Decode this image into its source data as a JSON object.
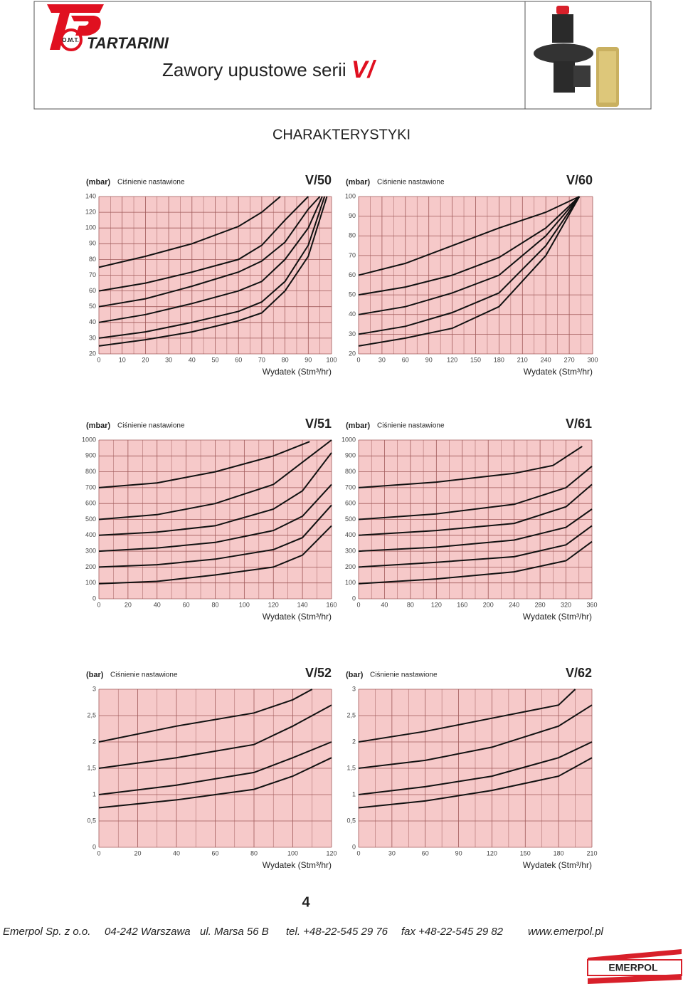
{
  "header": {
    "brand": "TARTARINI",
    "brand_mark": "O.M.T.",
    "title": "Zawory upustowe serii",
    "title_series": "V/"
  },
  "section_title": "CHARAKTERYSTYKI",
  "page_number": "4",
  "footer": {
    "items": [
      "Emerpol Sp. z o.o.",
      "04-242 Warszawa",
      "ul. Marsa 56 B",
      "tel. +48-22-545 29 76",
      "fax +48-22-545 29 82",
      "www.emerpol.pl"
    ],
    "logo": "EMERPOL"
  },
  "chart_data": [
    {
      "type": "line",
      "title": "V/50",
      "y_unit": "(mbar)",
      "y_label": "Ciśnienie nastawione",
      "x_label": "Wydatek (Stm³/hr)",
      "background": "#f6c9c9",
      "grid": true,
      "xlim": [
        0,
        100
      ],
      "xticks": [
        0,
        10,
        20,
        30,
        40,
        50,
        60,
        70,
        80,
        90,
        100
      ],
      "ylim": [
        20,
        140
      ],
      "yticks": [
        20,
        30,
        40,
        50,
        60,
        70,
        80,
        90,
        100,
        120,
        140
      ],
      "series": [
        {
          "color": "#111111",
          "x": [
            0,
            20,
            40,
            60,
            70,
            78
          ],
          "values": [
            75,
            82,
            90,
            102,
            120,
            140
          ]
        },
        {
          "color": "#111111",
          "x": [
            0,
            20,
            40,
            60,
            70,
            80,
            90
          ],
          "values": [
            60,
            65,
            72,
            80,
            89,
            110,
            140
          ]
        },
        {
          "color": "#111111",
          "x": [
            0,
            20,
            40,
            60,
            70,
            80,
            90,
            95
          ],
          "values": [
            50,
            55,
            63,
            72,
            79,
            91,
            124,
            140
          ]
        },
        {
          "color": "#111111",
          "x": [
            0,
            20,
            40,
            60,
            70,
            80,
            90,
            96
          ],
          "values": [
            40,
            45,
            52,
            60,
            66,
            80,
            100,
            140
          ]
        },
        {
          "color": "#111111",
          "x": [
            0,
            20,
            40,
            60,
            70,
            80,
            90,
            97
          ],
          "values": [
            30,
            34,
            40,
            47,
            53,
            66,
            89,
            140
          ]
        },
        {
          "color": "#111111",
          "x": [
            0,
            20,
            40,
            60,
            70,
            80,
            90,
            98
          ],
          "values": [
            25,
            29,
            34,
            41,
            46,
            60,
            82,
            140
          ]
        }
      ]
    },
    {
      "type": "line",
      "title": "V/60",
      "y_unit": "(mbar)",
      "y_label": "Ciśnienie nastawione",
      "x_label": "Wydatek (Stm³/hr)",
      "background": "#f6c9c9",
      "grid": true,
      "xlim": [
        0,
        300
      ],
      "xticks": [
        0,
        30,
        60,
        90,
        120,
        150,
        180,
        210,
        240,
        270,
        300
      ],
      "ylim": [
        20,
        100
      ],
      "yticks": [
        20,
        30,
        40,
        50,
        60,
        70,
        80,
        90,
        100
      ],
      "series": [
        {
          "color": "#111111",
          "x": [
            0,
            60,
            120,
            180,
            240,
            283
          ],
          "values": [
            60,
            66,
            75,
            84,
            92,
            100
          ]
        },
        {
          "color": "#111111",
          "x": [
            0,
            60,
            120,
            180,
            240,
            283
          ],
          "values": [
            50,
            54,
            60,
            69,
            84,
            100
          ]
        },
        {
          "color": "#111111",
          "x": [
            0,
            60,
            120,
            180,
            240,
            283
          ],
          "values": [
            40,
            44,
            51,
            60,
            80,
            100
          ]
        },
        {
          "color": "#111111",
          "x": [
            0,
            60,
            120,
            180,
            240,
            283
          ],
          "values": [
            30,
            34,
            41,
            51,
            75,
            100
          ]
        },
        {
          "color": "#111111",
          "x": [
            0,
            60,
            120,
            180,
            240,
            283
          ],
          "values": [
            24,
            28,
            33,
            44,
            70,
            100
          ]
        }
      ]
    },
    {
      "type": "line",
      "title": "V/51",
      "y_unit": "(mbar)",
      "y_label": "Ciśnienie nastawione",
      "x_label": "Wydatek (Stm³/hr)",
      "background": "#f6c9c9",
      "grid": true,
      "xlim": [
        0,
        160
      ],
      "xticks": [
        0,
        20,
        40,
        60,
        80,
        100,
        120,
        140,
        160
      ],
      "ylim": [
        0,
        1000
      ],
      "yticks": [
        0,
        100,
        200,
        300,
        400,
        500,
        600,
        700,
        800,
        900,
        1000
      ],
      "series": [
        {
          "color": "#111111",
          "x": [
            0,
            40,
            80,
            120,
            145
          ],
          "values": [
            700,
            730,
            800,
            900,
            990
          ]
        },
        {
          "color": "#111111",
          "x": [
            0,
            40,
            80,
            120,
            140,
            160
          ],
          "values": [
            500,
            530,
            600,
            720,
            860,
            1000
          ]
        },
        {
          "color": "#111111",
          "x": [
            0,
            40,
            80,
            120,
            140,
            160
          ],
          "values": [
            400,
            420,
            460,
            565,
            680,
            920
          ]
        },
        {
          "color": "#111111",
          "x": [
            0,
            40,
            80,
            120,
            140,
            160
          ],
          "values": [
            300,
            320,
            355,
            430,
            520,
            720
          ]
        },
        {
          "color": "#111111",
          "x": [
            0,
            40,
            80,
            120,
            140,
            160
          ],
          "values": [
            200,
            215,
            250,
            310,
            385,
            590
          ]
        },
        {
          "color": "#111111",
          "x": [
            0,
            40,
            80,
            120,
            140,
            160
          ],
          "values": [
            95,
            110,
            150,
            200,
            275,
            460
          ]
        }
      ]
    },
    {
      "type": "line",
      "title": "V/61",
      "y_unit": "(mbar)",
      "y_label": "Ciśnienie nastawione",
      "x_label": "Wydatek (Stm³/hr)",
      "background": "#f6c9c9",
      "grid": true,
      "xlim": [
        0,
        360
      ],
      "xticks": [
        0,
        40,
        80,
        120,
        160,
        200,
        240,
        280,
        320,
        360
      ],
      "ylim": [
        0,
        1000
      ],
      "yticks": [
        0,
        100,
        200,
        300,
        400,
        500,
        600,
        700,
        800,
        900,
        1000
      ],
      "series": [
        {
          "color": "#111111",
          "x": [
            0,
            120,
            240,
            300,
            345
          ],
          "values": [
            700,
            735,
            790,
            840,
            960
          ]
        },
        {
          "color": "#111111",
          "x": [
            0,
            120,
            240,
            320,
            360
          ],
          "values": [
            500,
            535,
            595,
            700,
            835
          ]
        },
        {
          "color": "#111111",
          "x": [
            0,
            120,
            240,
            320,
            360
          ],
          "values": [
            400,
            430,
            475,
            580,
            720
          ]
        },
        {
          "color": "#111111",
          "x": [
            0,
            120,
            240,
            320,
            360
          ],
          "values": [
            300,
            325,
            370,
            450,
            565
          ]
        },
        {
          "color": "#111111",
          "x": [
            0,
            120,
            240,
            320,
            360
          ],
          "values": [
            200,
            230,
            265,
            340,
            460
          ]
        },
        {
          "color": "#111111",
          "x": [
            0,
            120,
            240,
            320,
            360
          ],
          "values": [
            95,
            125,
            170,
            240,
            360
          ]
        }
      ]
    },
    {
      "type": "line",
      "title": "V/52",
      "y_unit": "(bar)",
      "y_label": "Ciśnienie nastawione",
      "x_label": "Wydatek (Stm³/hr)",
      "background": "#f6c9c9",
      "grid": true,
      "xlim": [
        0,
        120
      ],
      "xticks": [
        0,
        20,
        40,
        60,
        80,
        100,
        120
      ],
      "ylim": [
        0,
        3
      ],
      "yticks": [
        0,
        {
          "value": 0.5,
          "label": "0,5"
        },
        1,
        {
          "value": 1.5,
          "label": "1,5"
        },
        2,
        {
          "value": 2.5,
          "label": "2,5"
        },
        3
      ],
      "series": [
        {
          "color": "#111111",
          "x": [
            0,
            40,
            80,
            100,
            110
          ],
          "values": [
            2,
            2.3,
            2.55,
            2.8,
            3
          ]
        },
        {
          "color": "#111111",
          "x": [
            0,
            40,
            80,
            100,
            120
          ],
          "values": [
            1.5,
            1.7,
            1.95,
            2.3,
            2.7
          ]
        },
        {
          "color": "#111111",
          "x": [
            0,
            40,
            80,
            100,
            120
          ],
          "values": [
            1,
            1.18,
            1.42,
            1.7,
            2
          ]
        },
        {
          "color": "#111111",
          "x": [
            0,
            40,
            80,
            100,
            120
          ],
          "values": [
            0.75,
            0.9,
            1.1,
            1.35,
            1.7
          ]
        }
      ]
    },
    {
      "type": "line",
      "title": "V/62",
      "y_unit": "(bar)",
      "y_label": "Ciśnienie nastawione",
      "x_label": "Wydatek (Stm³/hr)",
      "background": "#f6c9c9",
      "grid": true,
      "xlim": [
        0,
        210
      ],
      "xticks": [
        0,
        30,
        60,
        90,
        120,
        150,
        180,
        210
      ],
      "ylim": [
        0,
        3
      ],
      "yticks": [
        0,
        {
          "value": 0.5,
          "label": "0,5"
        },
        1,
        {
          "value": 1.5,
          "label": "1,5"
        },
        2,
        {
          "value": 2.5,
          "label": "2,5"
        },
        3
      ],
      "series": [
        {
          "color": "#111111",
          "x": [
            0,
            60,
            120,
            180,
            195
          ],
          "values": [
            2,
            2.2,
            2.45,
            2.7,
            3
          ]
        },
        {
          "color": "#111111",
          "x": [
            0,
            60,
            120,
            180,
            210
          ],
          "values": [
            1.5,
            1.65,
            1.9,
            2.3,
            2.7
          ]
        },
        {
          "color": "#111111",
          "x": [
            0,
            60,
            120,
            180,
            210
          ],
          "values": [
            1,
            1.15,
            1.35,
            1.7,
            2
          ]
        },
        {
          "color": "#111111",
          "x": [
            0,
            60,
            120,
            180,
            210
          ],
          "values": [
            0.75,
            0.88,
            1.08,
            1.35,
            1.7
          ]
        }
      ]
    }
  ]
}
